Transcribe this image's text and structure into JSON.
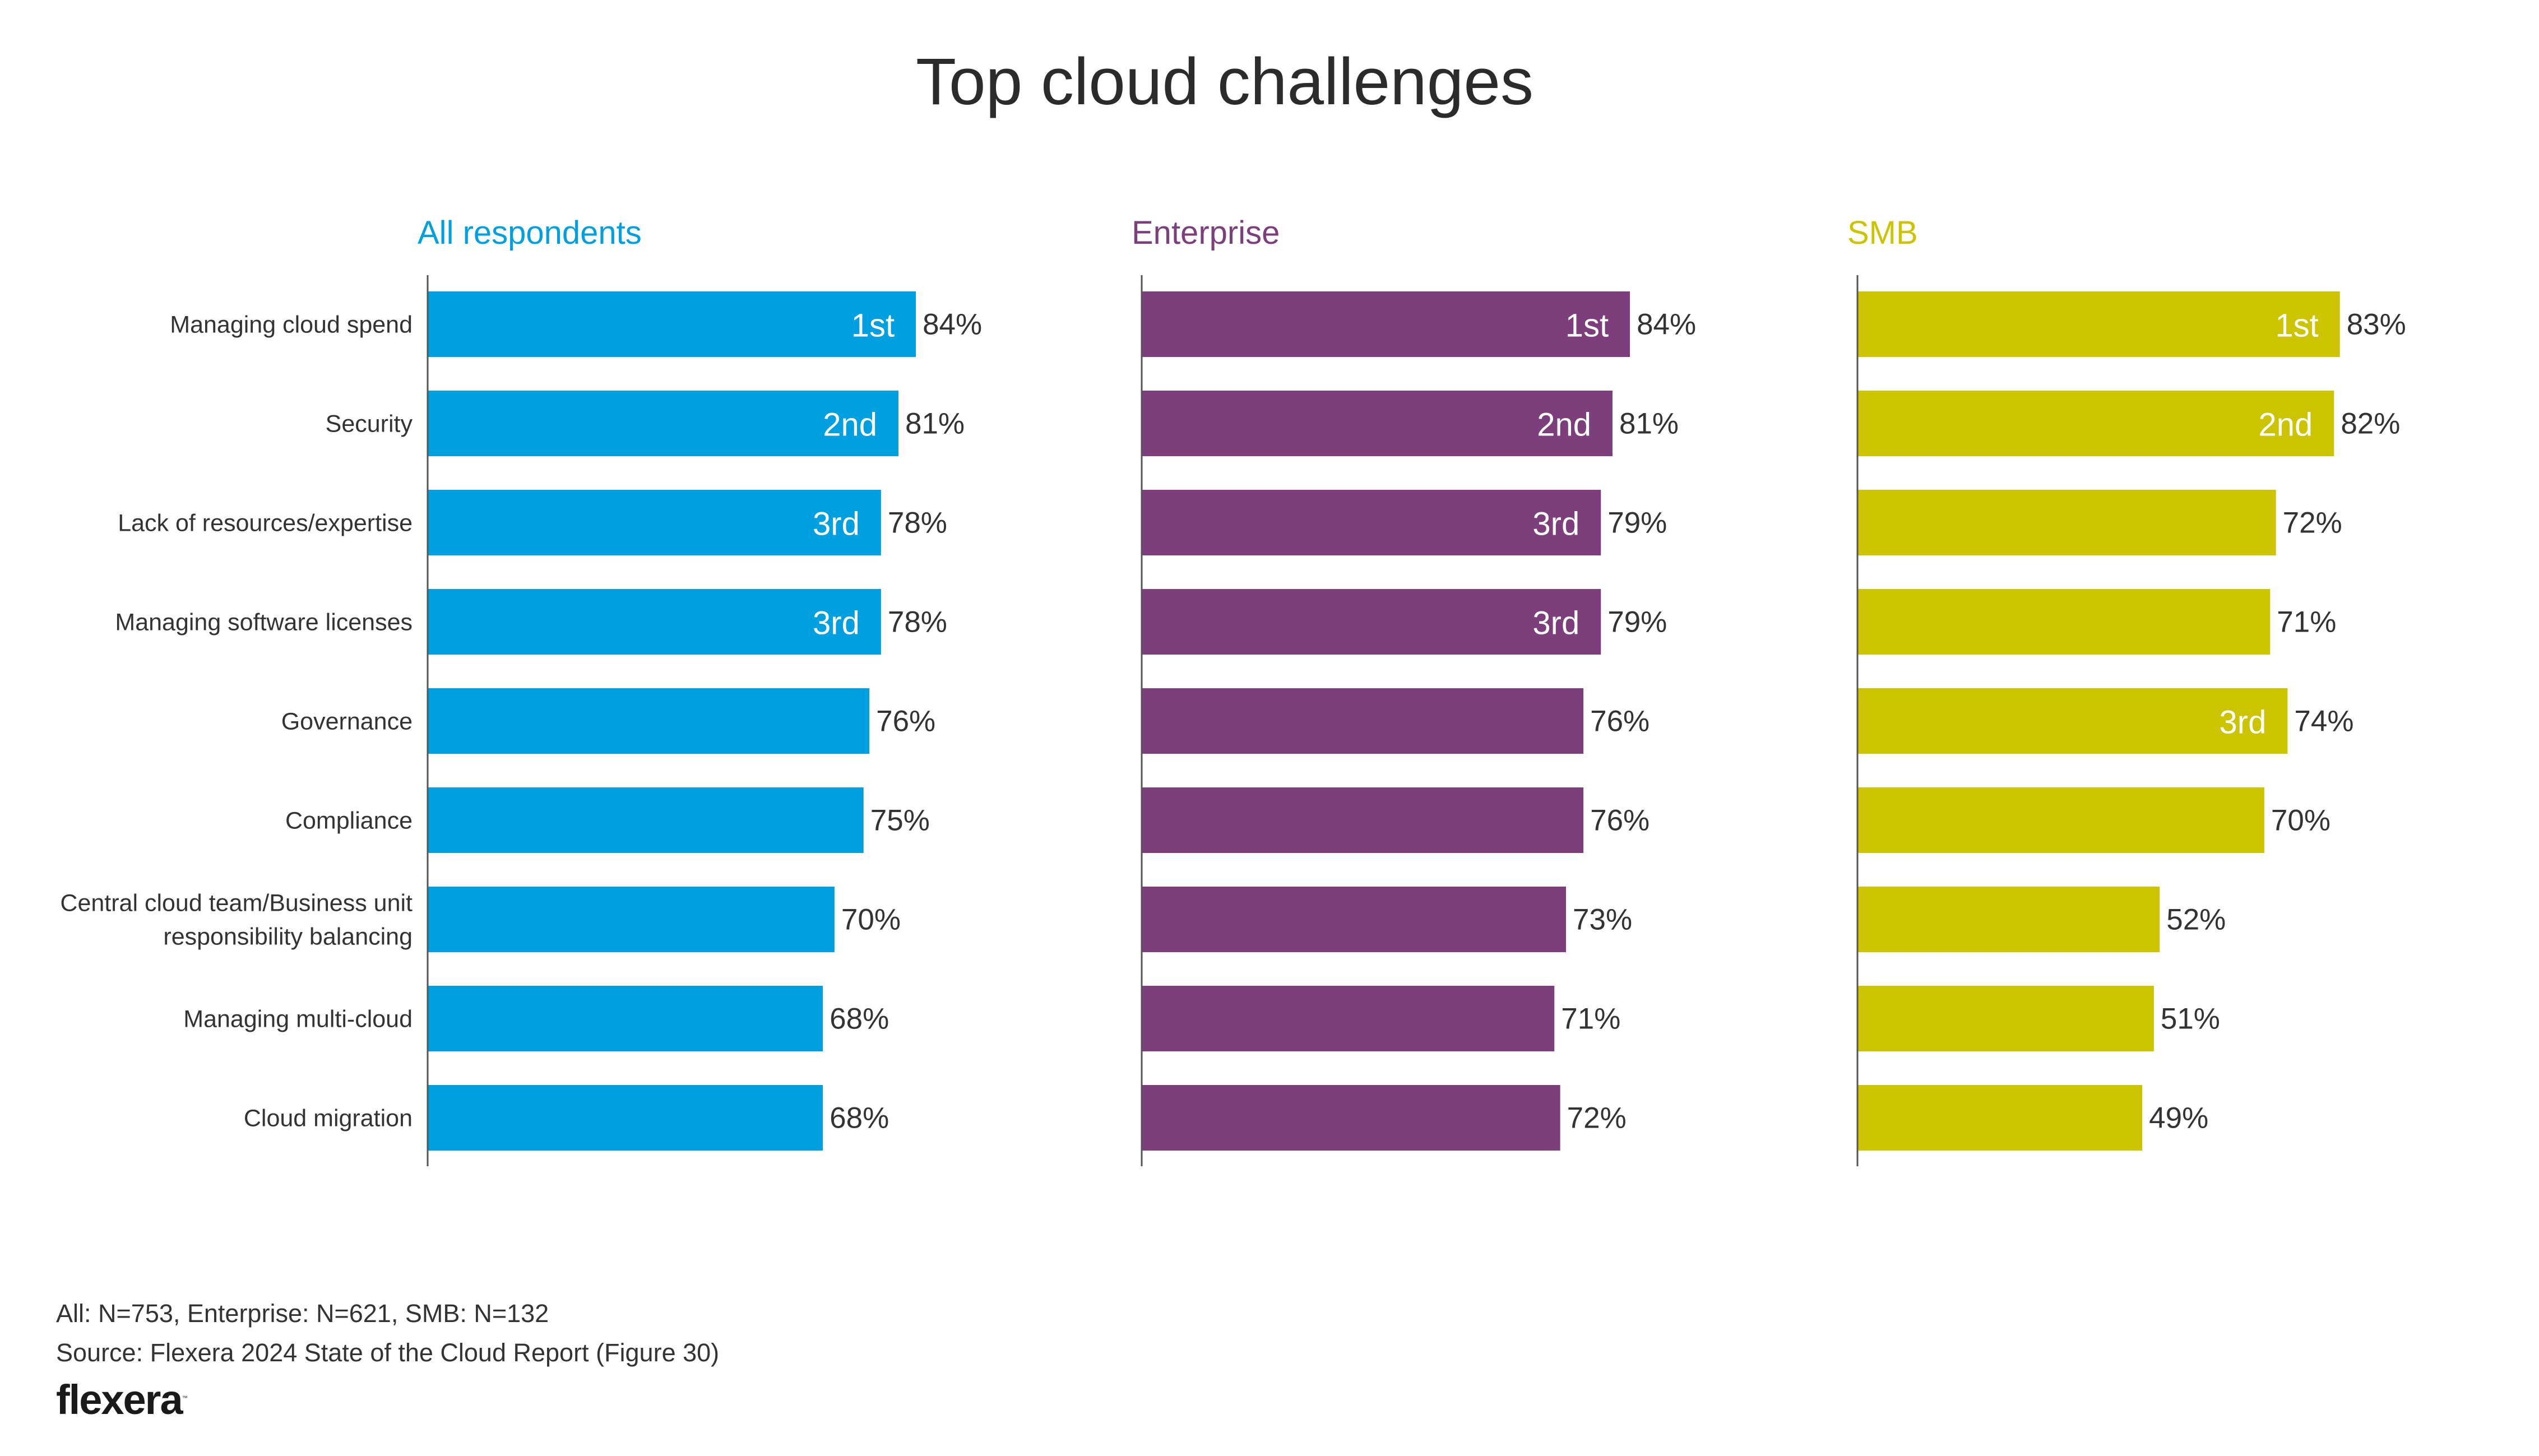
{
  "chart_data": {
    "type": "bar",
    "orientation": "horizontal",
    "title": "Top cloud challenges",
    "categories": [
      "Managing cloud spend",
      "Security",
      "Lack of resources/expertise",
      "Managing software licenses",
      "Governance",
      "Compliance",
      "Central cloud team/Business unit responsibility balancing",
      "Managing multi-cloud",
      "Cloud migration"
    ],
    "category_lines": [
      [
        "Managing cloud spend"
      ],
      [
        "Security"
      ],
      [
        "Lack of resources/expertise"
      ],
      [
        "Managing software licenses"
      ],
      [
        "Governance"
      ],
      [
        "Compliance"
      ],
      [
        "Central cloud team/Business unit",
        "responsibility balancing"
      ],
      [
        "Managing multi-cloud"
      ],
      [
        "Cloud migration"
      ]
    ],
    "value_unit": "%",
    "xlim": [
      0,
      100
    ],
    "grid": false,
    "series": [
      {
        "name": "All respondents",
        "color": "#009FDF",
        "values": [
          84,
          81,
          78,
          78,
          76,
          75,
          70,
          68,
          68
        ],
        "ranks": [
          "1st",
          "2nd",
          "3rd",
          "3rd",
          "",
          "",
          "",
          "",
          ""
        ]
      },
      {
        "name": "Enterprise",
        "color": "#7D3F7C",
        "values": [
          84,
          81,
          79,
          79,
          76,
          76,
          73,
          71,
          72
        ],
        "ranks": [
          "1st",
          "2nd",
          "3rd",
          "3rd",
          "",
          "",
          "",
          "",
          ""
        ]
      },
      {
        "name": "SMB",
        "color": "#CCC400",
        "values": [
          83,
          82,
          72,
          71,
          74,
          70,
          52,
          51,
          49
        ],
        "ranks": [
          "1st",
          "2nd",
          "",
          "",
          "3rd",
          "",
          "",
          "",
          ""
        ]
      }
    ]
  },
  "footer": {
    "sample_sizes": "All: N=753, Enterprise: N=621, SMB: N=132",
    "source": "Source: Flexera 2024 State of the Cloud Report (Figure 30)"
  },
  "brand": {
    "logo_text": "flexera",
    "logo_mark": "™"
  },
  "colors": {
    "text": "#333333",
    "axis": "#555555"
  }
}
